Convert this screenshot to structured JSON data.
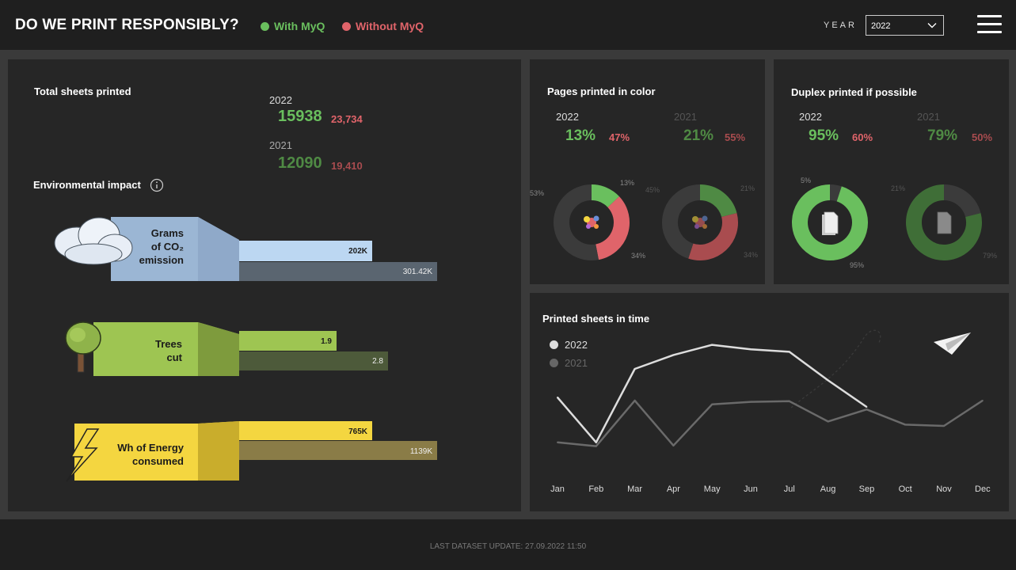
{
  "header": {
    "title": "DO WE PRINT RESPONSIBLY?",
    "legend": [
      {
        "label": "With MyQ",
        "color": "#6abf5e"
      },
      {
        "label": "Without MyQ",
        "color": "#e0646a"
      }
    ],
    "year_label": "YEAR",
    "year_value": "2022"
  },
  "colors": {
    "with": "#6abf5e",
    "without": "#e0646a",
    "with_dim": "#4f8a44",
    "without_dim": "#a94c4f",
    "panel": "#262626"
  },
  "total_sheets": {
    "title": "Total sheets printed",
    "rows": [
      {
        "year": "2022",
        "with": "15938",
        "without": "23,734"
      },
      {
        "year": "2021",
        "with": "12090",
        "without": "19,410"
      }
    ]
  },
  "environmental": {
    "title": "Environmental impact",
    "info_icon": "info-icon",
    "items": [
      {
        "label_lines": [
          "Grams",
          "of CO₂",
          "emission"
        ],
        "icon": "cloud-icon",
        "value_2022": "202K",
        "value_2021": "301.42K",
        "ratio_2022": 0.67,
        "ratio_2021": 1.0
      },
      {
        "label_lines": [
          "Trees",
          "cut"
        ],
        "icon": "tree-icon",
        "value_2022": "1.9",
        "value_2021": "2.8",
        "ratio_2022": 0.49,
        "ratio_2021": 0.75
      },
      {
        "label_lines": [
          "Wh of Energy",
          "consumed"
        ],
        "icon": "lightning-icon",
        "value_2022": "765K",
        "value_2021": "1139K",
        "ratio_2022": 0.67,
        "ratio_2021": 1.0
      }
    ]
  },
  "color_pages": {
    "title": "Pages printed in color",
    "years": [
      {
        "year": "2022",
        "with": "13%",
        "without": "47%",
        "ring": {
          "with_pct": 13,
          "without_pct": 34,
          "label_left": "53%",
          "label_top": "13%",
          "label_bottom": "34%"
        }
      },
      {
        "year": "2021",
        "with": "21%",
        "without": "55%",
        "ring": {
          "with_pct": 21,
          "without_pct": 34,
          "label_left": "45%",
          "label_top": "21%",
          "label_bottom": "34%"
        }
      }
    ]
  },
  "duplex": {
    "title": "Duplex printed if possible",
    "years": [
      {
        "year": "2022",
        "with": "95%",
        "without": "60%",
        "ring": {
          "with_pct": 95,
          "label_top": "5%",
          "label_bottom": "95%"
        }
      },
      {
        "year": "2021",
        "with": "79%",
        "without": "50%",
        "ring": {
          "with_pct": 79,
          "label_top": "21%",
          "label_bottom": "79%"
        }
      }
    ]
  },
  "chart_data": {
    "type": "line",
    "title": "Printed sheets in time",
    "categories": [
      "Jan",
      "Feb",
      "Mar",
      "Apr",
      "May",
      "Jun",
      "Jul",
      "Aug",
      "Sep",
      "Oct",
      "Nov",
      "Dec"
    ],
    "series": [
      {
        "name": "2022",
        "color": "#dddddd",
        "values": [
          1250,
          540,
          1700,
          1920,
          2080,
          2010,
          1970,
          1520,
          1100,
          null,
          null,
          null
        ]
      },
      {
        "name": "2021",
        "color": "#6a6a6a",
        "values": [
          540,
          480,
          1200,
          490,
          1140,
          1180,
          1190,
          870,
          1060,
          820,
          800,
          1200
        ]
      }
    ],
    "ylim": [
      0,
      2400
    ],
    "grid": false,
    "legend": "top-left"
  },
  "footer": {
    "text": "LAST DATASET UPDATE: 27.09.2022 11:50"
  }
}
